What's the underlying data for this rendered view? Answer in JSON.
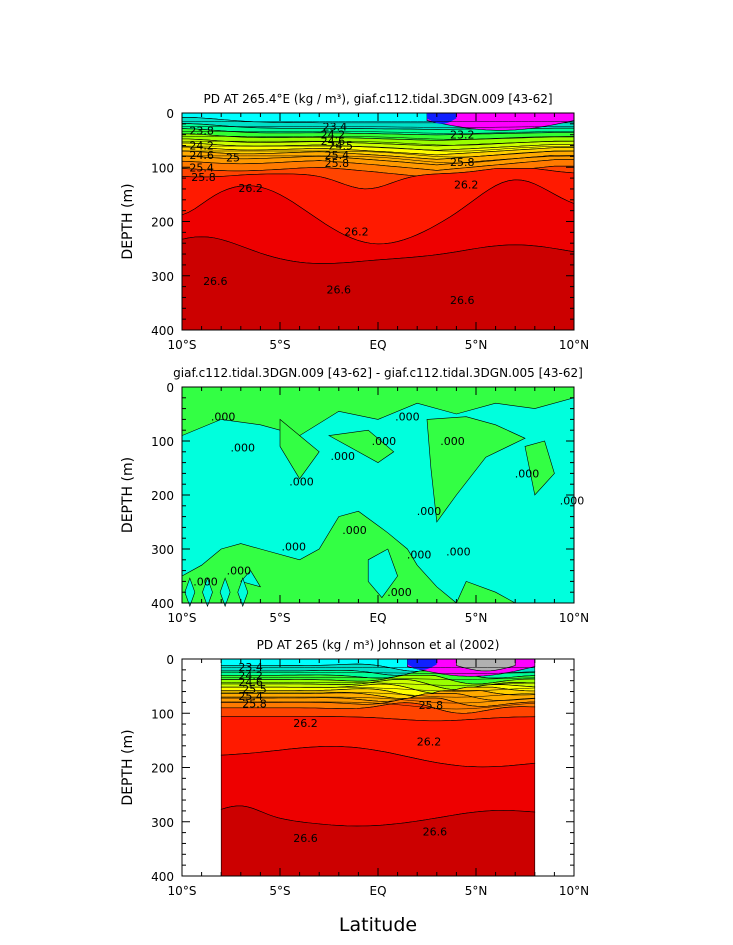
{
  "figure": {
    "xlabel": "Latitude",
    "x_ticks": [
      "10°S",
      "5°S",
      "EQ",
      "5°N",
      "10°N"
    ],
    "y_ticks": [
      "0",
      "100",
      "200",
      "300",
      "400"
    ],
    "ylabel": "DEPTH (m)"
  },
  "chart_data": [
    {
      "type": "heatmap",
      "title": "PD AT 265.4°E (kg / m³), giaf.c112.tidal.3DGN.009 [43-62]",
      "xlabel": "Latitude",
      "ylabel": "DEPTH (m)",
      "xlim": [
        -10,
        10
      ],
      "ylim": [
        400,
        0
      ],
      "contour_labels": [
        {
          "text": "23.8",
          "x": -9.0,
          "y": 32
        },
        {
          "text": "24.2",
          "x": -9.0,
          "y": 60
        },
        {
          "text": "24.6",
          "x": -9.0,
          "y": 77
        },
        {
          "text": "25",
          "x": -7.4,
          "y": 82
        },
        {
          "text": "25.4",
          "x": -9.0,
          "y": 100
        },
        {
          "text": "25.8",
          "x": -8.9,
          "y": 118
        },
        {
          "text": "26.2",
          "x": -6.5,
          "y": 138
        },
        {
          "text": "23.4",
          "x": -2.2,
          "y": 25
        },
        {
          "text": "24.2",
          "x": -2.3,
          "y": 40
        },
        {
          "text": "24.6",
          "x": -2.3,
          "y": 52
        },
        {
          "text": "24.5",
          "x": -1.9,
          "y": 60
        },
        {
          "text": "25.4",
          "x": -2.1,
          "y": 77
        },
        {
          "text": "25.8",
          "x": -2.1,
          "y": 92
        },
        {
          "text": "26.2",
          "x": -1.1,
          "y": 218
        },
        {
          "text": "26.6",
          "x": -8.3,
          "y": 310
        },
        {
          "text": "26.6",
          "x": -2.0,
          "y": 325
        },
        {
          "text": "26.6",
          "x": 4.3,
          "y": 345
        },
        {
          "text": "23.2",
          "x": 4.3,
          "y": 40
        },
        {
          "text": "25.8",
          "x": 4.3,
          "y": 90
        },
        {
          "text": "26.2",
          "x": 4.5,
          "y": 132
        }
      ]
    },
    {
      "type": "heatmap",
      "title": "giaf.c112.tidal.3DGN.009 [43-62] - giaf.c112.tidal.3DGN.005 [43-62]",
      "xlabel": "Latitude",
      "ylabel": "DEPTH (m)",
      "xlim": [
        -10,
        10
      ],
      "ylim": [
        400,
        0
      ],
      "contour_labels": [
        {
          "text": ".000",
          "x": -7.9,
          "y": 55
        },
        {
          "text": ".000",
          "x": 1.5,
          "y": 55
        },
        {
          "text": ".000",
          "x": -6.9,
          "y": 112
        },
        {
          "text": ".000",
          "x": -1.8,
          "y": 128
        },
        {
          "text": ".000",
          "x": 0.3,
          "y": 100
        },
        {
          "text": ".000",
          "x": 3.8,
          "y": 100
        },
        {
          "text": ".000",
          "x": -3.9,
          "y": 175
        },
        {
          "text": ".000",
          "x": 2.6,
          "y": 230
        },
        {
          "text": ".000",
          "x": -4.3,
          "y": 295
        },
        {
          "text": ".000",
          "x": -1.2,
          "y": 265
        },
        {
          "text": ".000",
          "x": 2.1,
          "y": 310
        },
        {
          "text": ".000",
          "x": 4.1,
          "y": 305
        },
        {
          "text": ".000",
          "x": -8.8,
          "y": 360
        },
        {
          "text": ".000",
          "x": -7.1,
          "y": 340
        },
        {
          "text": ".000",
          "x": 1.1,
          "y": 380
        },
        {
          "text": ".000",
          "x": 7.6,
          "y": 160
        },
        {
          "text": ".000",
          "x": 9.9,
          "y": 210
        }
      ]
    },
    {
      "type": "heatmap",
      "title": "PD AT 265 (kg / m³) Johnson et al (2002)",
      "xlabel": "Latitude",
      "ylabel": "DEPTH (m)",
      "xlim": [
        -10,
        10
      ],
      "ylim": [
        400,
        0
      ],
      "data_xrange": [
        -8,
        8
      ],
      "contour_labels": [
        {
          "text": "23.4",
          "x": -6.5,
          "y": 15
        },
        {
          "text": "24.2",
          "x": -6.5,
          "y": 30
        },
        {
          "text": "24.6",
          "x": -6.5,
          "y": 42
        },
        {
          "text": "25.5",
          "x": -6.3,
          "y": 55
        },
        {
          "text": "25.4",
          "x": -6.5,
          "y": 68
        },
        {
          "text": "25.8",
          "x": -6.3,
          "y": 82
        },
        {
          "text": "26.2",
          "x": -3.7,
          "y": 118
        },
        {
          "text": "26.2",
          "x": 2.6,
          "y": 152
        },
        {
          "text": "26.6",
          "x": -3.7,
          "y": 330
        },
        {
          "text": "26.6",
          "x": 2.9,
          "y": 318
        },
        {
          "text": "25.8",
          "x": 2.7,
          "y": 85
        }
      ]
    }
  ]
}
